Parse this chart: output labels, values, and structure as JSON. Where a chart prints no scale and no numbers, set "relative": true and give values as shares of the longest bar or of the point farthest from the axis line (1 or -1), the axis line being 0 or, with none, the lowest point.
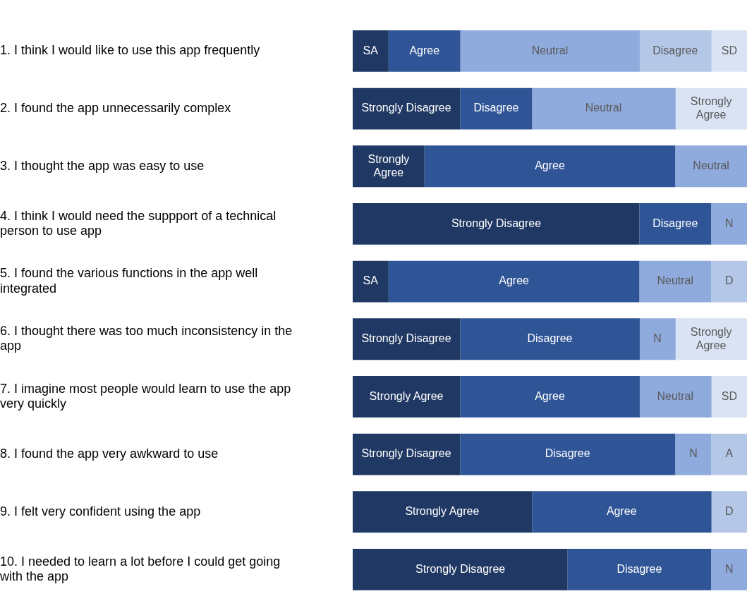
{
  "chart_data": {
    "type": "bar",
    "orientation": "horizontal",
    "stacked": true,
    "relative": true,
    "legend": false,
    "grid": false,
    "categories": [
      "1. I think I would like to use this app frequently",
      "2. I found the app unnecessarily complex",
      "3. I thought the app was easy to use",
      "4. I think I would need the suppport of a technical person to use app",
      "5. I found the various functions in the app well integrated",
      "6. I thought there was too much inconsistency in the app",
      "7. I imagine most people would learn to use the app very quickly",
      "8. I found the app very awkward to use",
      "9. I felt very confident using the app",
      "10. I needed to learn a lot before I could get going with the app"
    ],
    "series": [
      {
        "color": "#203864",
        "values": [
          0.091,
          0.273,
          0.182,
          0.727,
          0.091,
          0.273,
          0.273,
          0.273,
          0.455,
          0.545
        ]
      },
      {
        "color": "#2f5597",
        "values": [
          0.182,
          0.182,
          0.636,
          0.182,
          0.636,
          0.455,
          0.455,
          0.545,
          0.455,
          0.364
        ]
      },
      {
        "color": "#8faadc",
        "values": [
          0.455,
          0.364,
          0.182,
          0.091,
          0.182,
          0.091,
          0.182,
          0.091,
          null,
          0.091
        ]
      },
      {
        "color": "#b4c7e7",
        "values": [
          0.182,
          null,
          null,
          null,
          0.091,
          null,
          null,
          0.091,
          0.09,
          null
        ]
      },
      {
        "color": "#dae3f3",
        "values": [
          0.09,
          0.181,
          null,
          null,
          null,
          0.181,
          0.09,
          null,
          null,
          null
        ]
      }
    ],
    "annotations": [
      {
        "text": "SA",
        "x": 0.045,
        "y": "1. I think I would like to use this app frequently"
      },
      {
        "text": "Agree",
        "x": 0.182,
        "y": "1. I think I would like to use this app frequently"
      },
      {
        "text": "Neutral",
        "x": 0.5,
        "y": "1. I think I would like to use this app frequently"
      },
      {
        "text": "Disagree",
        "x": 0.818,
        "y": "1. I think I would like to use this app frequently"
      },
      {
        "text": "SD",
        "x": 0.955,
        "y": "1. I think I would like to use this app frequently"
      },
      {
        "text": "Strongly Disagree",
        "x": 0.136,
        "y": "2. I found the app unnecessarily complex"
      },
      {
        "text": "Disagree",
        "x": 0.364,
        "y": "2. I found the app unnecessarily complex"
      },
      {
        "text": "Neutral",
        "x": 0.636,
        "y": "2. I found the app unnecessarily complex"
      },
      {
        "text": "Strongly Agree",
        "x": 0.909,
        "y": "2. I found the app unnecessarily complex"
      },
      {
        "text": "Strongly Agree",
        "x": 0.091,
        "y": "3. I thought the app was easy to use"
      },
      {
        "text": "Agree",
        "x": 0.5,
        "y": "3. I thought the app was easy to use"
      },
      {
        "text": "Neutral",
        "x": 0.909,
        "y": "3. I thought the app was easy to use"
      },
      {
        "text": "Strongly Disagree",
        "x": 0.364,
        "y": "4. I think I would need the suppport of a technical person to use app"
      },
      {
        "text": "Disagree",
        "x": 0.818,
        "y": "4. I think I would need the suppport of a technical person to use app"
      },
      {
        "text": "N",
        "x": 0.955,
        "y": "4. I think I would need the suppport of a technical person to use app"
      },
      {
        "text": "SA",
        "x": 0.045,
        "y": "5. I found the various functions in the app well integrated"
      },
      {
        "text": "Agree",
        "x": 0.409,
        "y": "5. I found the various functions in the app well integrated"
      },
      {
        "text": "Neutral",
        "x": 0.818,
        "y": "5. I found the various functions in the app well integrated"
      },
      {
        "text": "D",
        "x": 0.955,
        "y": "5. I found the various functions in the app well integrated"
      },
      {
        "text": "Strongly Disagree",
        "x": 0.136,
        "y": "6. I thought there was too much inconsistency in the app"
      },
      {
        "text": "Disagree",
        "x": 0.5,
        "y": "6. I thought there was too much inconsistency in the app"
      },
      {
        "text": "N",
        "x": 0.773,
        "y": "6. I thought there was too much inconsistency in the app"
      },
      {
        "text": "Strongly Agree",
        "x": 0.909,
        "y": "6. I thought there was too much inconsistency in the app"
      },
      {
        "text": "Strongly Agree",
        "x": 0.136,
        "y": "7. I imagine most people would learn to use the app very quickly"
      },
      {
        "text": "Agree",
        "x": 0.5,
        "y": "7. I imagine most people would learn to use the app very quickly"
      },
      {
        "text": "Neutral",
        "x": 0.818,
        "y": "7. I imagine most people would learn to use the app very quickly"
      },
      {
        "text": "SD",
        "x": 0.955,
        "y": "7. I imagine most people would learn to use the app very quickly"
      },
      {
        "text": "Strongly Disagree",
        "x": 0.136,
        "y": "8. I found the app very awkward to use"
      },
      {
        "text": "Disagree",
        "x": 0.545,
        "y": "8. I found the app very awkward to use"
      },
      {
        "text": "N",
        "x": 0.864,
        "y": "8. I found the app very awkward to use"
      },
      {
        "text": "A",
        "x": 0.955,
        "y": "8. I found the app very awkward to use"
      },
      {
        "text": "Strongly Agree",
        "x": 0.227,
        "y": "9. I felt very confident using the app"
      },
      {
        "text": "Agree",
        "x": 0.682,
        "y": "9. I felt very confident using the app"
      },
      {
        "text": "D",
        "x": 0.955,
        "y": "9. I felt very confident using the app"
      },
      {
        "text": "Strongly Disagree",
        "x": 0.273,
        "y": "10. I needed to learn a lot before I could get going with the app"
      },
      {
        "text": "Disagree",
        "x": 0.727,
        "y": "10. I needed to learn a lot before I could get going with the app"
      },
      {
        "text": "N",
        "x": 0.955,
        "y": "10. I needed to learn a lot before I could get going with the app"
      }
    ]
  }
}
